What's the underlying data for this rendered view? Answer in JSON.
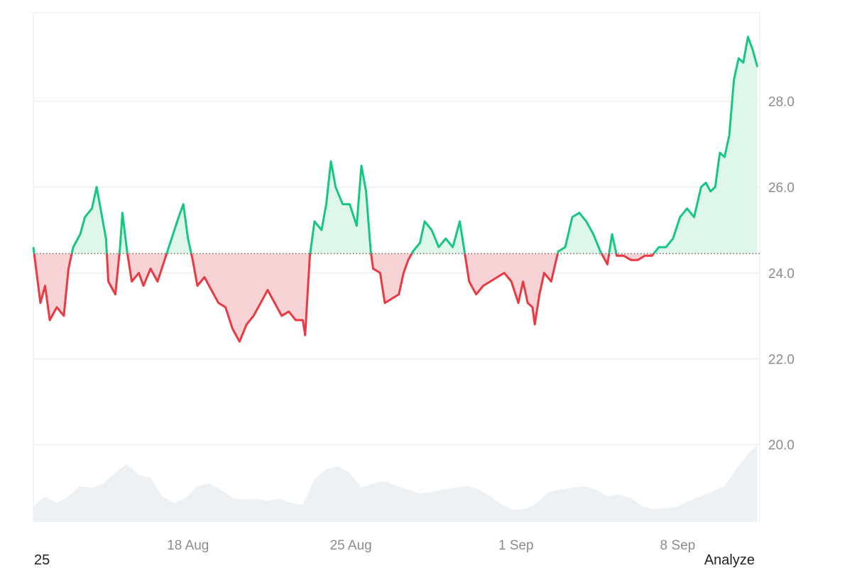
{
  "footer": {
    "left_text": "25",
    "right_text": "Analyze"
  },
  "colors": {
    "up_line": "#16c784",
    "down_line": "#ea3943",
    "up_fill": "#dff7ea",
    "down_fill": "#f8d3d5",
    "volume": "#eef1f4",
    "grid": "#e8e8e8",
    "axis_text": "#8c8c8c"
  },
  "chart_data": {
    "type": "line",
    "baseline": 24.45,
    "ylim": [
      18.2,
      30.06
    ],
    "y_ticks": [
      {
        "value": 20.0,
        "label": "20.0"
      },
      {
        "value": 22.0,
        "label": "22.0"
      },
      {
        "value": 24.0,
        "label": "24.0"
      },
      {
        "value": 26.0,
        "label": "26.0"
      },
      {
        "value": 28.0,
        "label": "28.0"
      }
    ],
    "xlim": [
      -3.0,
      28.0
    ],
    "x_ticks": [
      {
        "value": 3.6,
        "label": "18 Aug"
      },
      {
        "value": 10.55,
        "label": "25 Aug"
      },
      {
        "value": 17.6,
        "label": "1 Sep"
      },
      {
        "value": 24.5,
        "label": "8 Sep"
      }
    ],
    "series": [
      {
        "values": [
          [
            -3.0,
            24.6
          ],
          [
            -2.7,
            23.3
          ],
          [
            -2.5,
            23.7
          ],
          [
            -2.3,
            22.9
          ],
          [
            -2.0,
            23.2
          ],
          [
            -1.7,
            23.0
          ],
          [
            -1.5,
            24.1
          ],
          [
            -1.3,
            24.6
          ],
          [
            -1.0,
            24.9
          ],
          [
            -0.8,
            25.3
          ],
          [
            -0.5,
            25.5
          ],
          [
            -0.3,
            26.0
          ],
          [
            -0.1,
            25.4
          ],
          [
            0.1,
            24.8
          ],
          [
            0.2,
            23.8
          ],
          [
            0.5,
            23.5
          ],
          [
            0.7,
            24.6
          ],
          [
            0.8,
            25.4
          ],
          [
            1.0,
            24.5
          ],
          [
            1.2,
            23.8
          ],
          [
            1.5,
            24.0
          ],
          [
            1.7,
            23.7
          ],
          [
            2.0,
            24.1
          ],
          [
            2.3,
            23.8
          ],
          [
            2.6,
            24.3
          ],
          [
            2.9,
            24.8
          ],
          [
            3.2,
            25.3
          ],
          [
            3.4,
            25.6
          ],
          [
            3.6,
            24.8
          ],
          [
            3.8,
            24.3
          ],
          [
            4.0,
            23.7
          ],
          [
            4.3,
            23.9
          ],
          [
            4.6,
            23.6
          ],
          [
            4.9,
            23.3
          ],
          [
            5.2,
            23.2
          ],
          [
            5.5,
            22.7
          ],
          [
            5.8,
            22.4
          ],
          [
            6.1,
            22.8
          ],
          [
            6.4,
            23.0
          ],
          [
            6.7,
            23.3
          ],
          [
            7.0,
            23.6
          ],
          [
            7.3,
            23.3
          ],
          [
            7.6,
            23.0
          ],
          [
            7.9,
            23.1
          ],
          [
            8.2,
            22.9
          ],
          [
            8.5,
            22.9
          ],
          [
            8.6,
            22.55
          ],
          [
            8.8,
            24.4
          ],
          [
            9.0,
            25.2
          ],
          [
            9.3,
            25.0
          ],
          [
            9.5,
            25.6
          ],
          [
            9.7,
            26.6
          ],
          [
            9.9,
            26.0
          ],
          [
            10.2,
            25.6
          ],
          [
            10.5,
            25.6
          ],
          [
            10.8,
            25.1
          ],
          [
            11.0,
            26.5
          ],
          [
            11.2,
            25.9
          ],
          [
            11.4,
            24.5
          ],
          [
            11.5,
            24.1
          ],
          [
            11.8,
            24.0
          ],
          [
            12.0,
            23.3
          ],
          [
            12.3,
            23.4
          ],
          [
            12.6,
            23.5
          ],
          [
            12.8,
            24.0
          ],
          [
            13.0,
            24.3
          ],
          [
            13.2,
            24.5
          ],
          [
            13.5,
            24.7
          ],
          [
            13.7,
            25.2
          ],
          [
            14.0,
            25.0
          ],
          [
            14.3,
            24.6
          ],
          [
            14.6,
            24.8
          ],
          [
            14.9,
            24.6
          ],
          [
            15.2,
            25.2
          ],
          [
            15.4,
            24.5
          ],
          [
            15.6,
            23.8
          ],
          [
            15.9,
            23.5
          ],
          [
            16.2,
            23.7
          ],
          [
            16.5,
            23.8
          ],
          [
            16.8,
            23.9
          ],
          [
            17.1,
            24.0
          ],
          [
            17.4,
            23.8
          ],
          [
            17.7,
            23.3
          ],
          [
            17.9,
            23.8
          ],
          [
            18.1,
            23.3
          ],
          [
            18.3,
            23.2
          ],
          [
            18.4,
            22.8
          ],
          [
            18.6,
            23.5
          ],
          [
            18.8,
            24.0
          ],
          [
            19.1,
            23.8
          ],
          [
            19.4,
            24.5
          ],
          [
            19.7,
            24.6
          ],
          [
            20.0,
            25.3
          ],
          [
            20.3,
            25.4
          ],
          [
            20.6,
            25.2
          ],
          [
            20.9,
            24.9
          ],
          [
            21.2,
            24.5
          ],
          [
            21.5,
            24.2
          ],
          [
            21.7,
            24.9
          ],
          [
            21.9,
            24.4
          ],
          [
            22.2,
            24.4
          ],
          [
            22.5,
            24.3
          ],
          [
            22.8,
            24.3
          ],
          [
            23.1,
            24.4
          ],
          [
            23.4,
            24.4
          ],
          [
            23.7,
            24.6
          ],
          [
            24.0,
            24.6
          ],
          [
            24.3,
            24.8
          ],
          [
            24.6,
            25.3
          ],
          [
            24.9,
            25.5
          ],
          [
            25.2,
            25.3
          ],
          [
            25.5,
            26.0
          ],
          [
            25.7,
            26.1
          ],
          [
            25.9,
            25.9
          ],
          [
            26.1,
            26.0
          ],
          [
            26.3,
            26.8
          ],
          [
            26.5,
            26.7
          ],
          [
            26.7,
            27.2
          ],
          [
            26.9,
            28.5
          ],
          [
            27.1,
            29.0
          ],
          [
            27.3,
            28.9
          ],
          [
            27.5,
            29.5
          ],
          [
            27.7,
            29.2
          ],
          [
            27.9,
            28.8
          ]
        ]
      }
    ],
    "volume": [
      [
        -3.0,
        0.18
      ],
      [
        -2.5,
        0.3
      ],
      [
        -2.0,
        0.22
      ],
      [
        -1.5,
        0.3
      ],
      [
        -1.0,
        0.42
      ],
      [
        -0.5,
        0.4
      ],
      [
        0.0,
        0.45
      ],
      [
        0.5,
        0.58
      ],
      [
        1.0,
        0.68
      ],
      [
        1.5,
        0.55
      ],
      [
        2.0,
        0.52
      ],
      [
        2.5,
        0.3
      ],
      [
        3.0,
        0.22
      ],
      [
        3.5,
        0.28
      ],
      [
        4.0,
        0.42
      ],
      [
        4.5,
        0.45
      ],
      [
        5.0,
        0.38
      ],
      [
        5.5,
        0.28
      ],
      [
        6.0,
        0.26
      ],
      [
        6.5,
        0.27
      ],
      [
        7.0,
        0.25
      ],
      [
        7.5,
        0.27
      ],
      [
        8.0,
        0.22
      ],
      [
        8.5,
        0.2
      ],
      [
        9.0,
        0.5
      ],
      [
        9.5,
        0.62
      ],
      [
        10.0,
        0.65
      ],
      [
        10.5,
        0.58
      ],
      [
        11.0,
        0.4
      ],
      [
        11.5,
        0.45
      ],
      [
        12.0,
        0.48
      ],
      [
        12.5,
        0.42
      ],
      [
        13.0,
        0.38
      ],
      [
        13.5,
        0.33
      ],
      [
        14.0,
        0.35
      ],
      [
        14.5,
        0.38
      ],
      [
        15.0,
        0.4
      ],
      [
        15.5,
        0.42
      ],
      [
        16.0,
        0.38
      ],
      [
        16.5,
        0.3
      ],
      [
        17.0,
        0.2
      ],
      [
        17.5,
        0.14
      ],
      [
        18.0,
        0.15
      ],
      [
        18.5,
        0.22
      ],
      [
        19.0,
        0.35
      ],
      [
        19.5,
        0.38
      ],
      [
        20.0,
        0.4
      ],
      [
        20.5,
        0.42
      ],
      [
        21.0,
        0.38
      ],
      [
        21.5,
        0.3
      ],
      [
        22.0,
        0.32
      ],
      [
        22.5,
        0.28
      ],
      [
        23.0,
        0.18
      ],
      [
        23.5,
        0.15
      ],
      [
        24.0,
        0.16
      ],
      [
        24.5,
        0.18
      ],
      [
        25.0,
        0.25
      ],
      [
        25.5,
        0.3
      ],
      [
        26.0,
        0.36
      ],
      [
        26.5,
        0.42
      ],
      [
        27.0,
        0.62
      ],
      [
        27.5,
        0.8
      ],
      [
        27.9,
        0.9
      ]
    ]
  }
}
